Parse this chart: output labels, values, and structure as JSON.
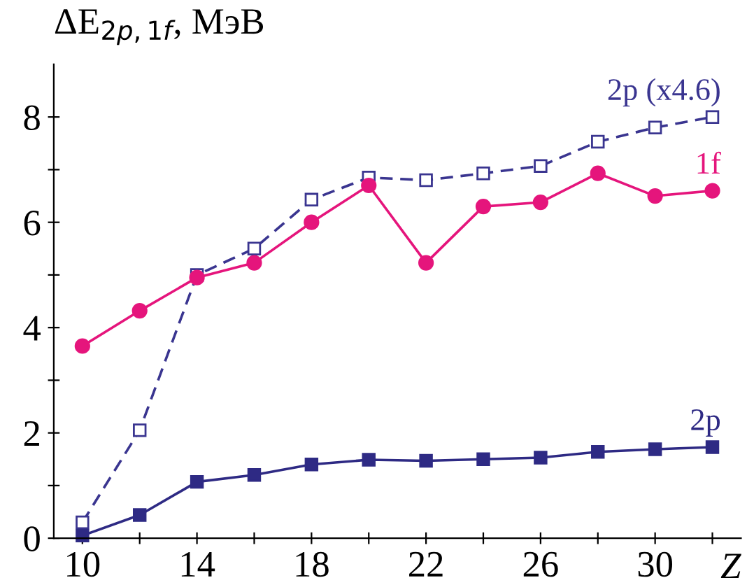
{
  "chart_data": {
    "type": "line",
    "ylabel": "ΔE$_{2p,1f}$, МэВ",
    "xlabel": "Z",
    "x": [
      10,
      12,
      14,
      16,
      18,
      20,
      22,
      24,
      26,
      28,
      30,
      32
    ],
    "series": [
      {
        "name": "2p (x4.6)",
        "color": "#3a3590",
        "line_style": "dashed",
        "marker": "square",
        "values": [
          0.3,
          2.05,
          5.0,
          5.5,
          6.43,
          6.85,
          6.8,
          6.93,
          7.07,
          7.53,
          7.8,
          8.0
        ]
      },
      {
        "name": "1f",
        "color": "#e5157c",
        "line_style": "solid",
        "marker": "circle",
        "values": [
          3.65,
          4.32,
          4.95,
          5.23,
          6.0,
          6.7,
          5.23,
          6.3,
          6.38,
          6.93,
          6.5,
          6.6
        ]
      },
      {
        "name": "2p",
        "color": "#2e2a84",
        "line_style": "solid",
        "marker": "square",
        "values": [
          0.05,
          0.44,
          1.07,
          1.2,
          1.4,
          1.49,
          1.47,
          1.5,
          1.53,
          1.64,
          1.69,
          1.73
        ]
      }
    ],
    "xlim": [
      9,
      33
    ],
    "xticks": [
      10,
      {
        "value": 12,
        "label": null
      },
      14,
      {
        "value": 16,
        "label": null
      },
      18,
      {
        "value": 20,
        "label": null
      },
      22,
      {
        "value": 24,
        "label": null
      },
      26,
      {
        "value": 28,
        "label": null
      },
      30,
      {
        "value": 32,
        "label": null
      }
    ],
    "ylim": [
      0,
      9
    ],
    "yticks": [
      0,
      {
        "value": 1,
        "label": null
      },
      2,
      {
        "value": 3,
        "label": null
      },
      4,
      {
        "value": 5,
        "label": null
      },
      6,
      {
        "value": 7,
        "label": null
      },
      8
    ],
    "grid": false,
    "legend": false
  }
}
